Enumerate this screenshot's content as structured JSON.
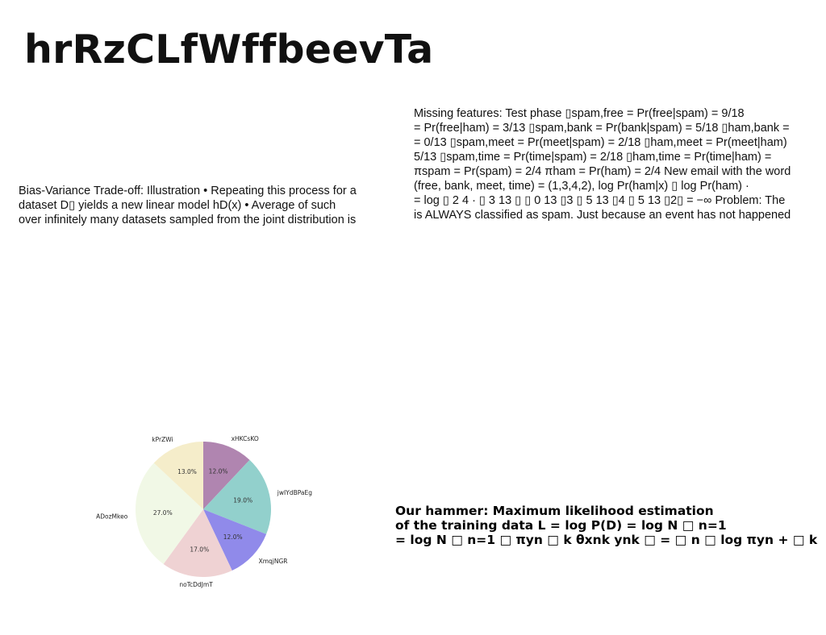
{
  "title": "hrRzCLfWffbeevTa",
  "bias_paragraph": {
    "lines": [
      "Bias-Variance Trade-off: Illustration • Repeating this process for a",
      "dataset D▯ yields a new linear model hD(x) • Average of such",
      "over infinitely many datasets sampled from the joint distribution is"
    ]
  },
  "missing_paragraph": {
    "lines": [
      "Missing features: Test phase ▯spam,free = Pr(free|spam) = 9/18",
      "= Pr(free|ham) = 3/13 ▯spam,bank = Pr(bank|spam) = 5/18 ▯ham,bank =",
      "= 0/13 ▯spam,meet = Pr(meet|spam) = 2/18 ▯ham,meet = Pr(meet|ham)",
      "5/13 ▯spam,time = Pr(time|spam) = 2/18 ▯ham,time = Pr(time|ham) =",
      "πspam = Pr(spam) = 2/4 πham = Pr(ham) = 2/4 New email with the word",
      "(free, bank, meet, time) = (1,3,4,2), log Pr(ham|x) ▯ log Pr(ham) ·",
      "= log ▯ 2 4 · ▯ 3 13 ▯ ▯ 0 13 ▯3 ▯ 5 13 ▯4 ▯ 5 13 ▯2▯ = −∞ Problem: The",
      "is ALWAYS classified as spam. Just because an event has not happened"
    ]
  },
  "hammer_paragraph": {
    "lines": [
      "Our hammer: Maximum likelihood estimation",
      "of the training data L = log P(D) = log N □ n=1",
      "= log N □ n=1 □ πyn □ k θxnk ynk □ = □ n □ log πyn + □ k"
    ]
  },
  "chart_data": {
    "type": "pie",
    "start_angle_deg": 90,
    "direction": "clockwise",
    "slices": [
      {
        "label": "xHKCsKO",
        "value": 12.0,
        "pct_label": "12.0%",
        "color": "#b085b0"
      },
      {
        "label": "jwIYdBPaEg",
        "value": 19.0,
        "pct_label": "19.0%",
        "color": "#92d0cc"
      },
      {
        "label": "XmqjNGR",
        "value": 12.0,
        "pct_label": "12.0%",
        "color": "#908aea"
      },
      {
        "label": "noTcDdJmT",
        "value": 17.0,
        "pct_label": "17.0%",
        "color": "#efd2d3"
      },
      {
        "label": "ADozMkeo",
        "value": 27.0,
        "pct_label": "27.0%",
        "color": "#f1f8e6"
      },
      {
        "label": "kPrZWi",
        "value": 13.0,
        "pct_label": "13.0%",
        "color": "#f5edca"
      }
    ]
  }
}
